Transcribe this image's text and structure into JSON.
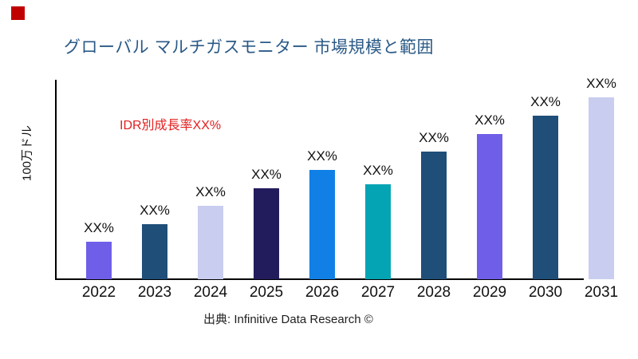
{
  "page": {
    "background": "#ffffff"
  },
  "logo": {
    "name": "red-square-logo",
    "color": "#c00000"
  },
  "header": {
    "title": "グローバル マルチガスモニター 市場規模と範囲",
    "title_color": "#2b5a87"
  },
  "growth_note": {
    "text": "IDR別成長率XX%",
    "color": "#e32020"
  },
  "source": {
    "text": "出典: Infinitive Data Research ©"
  },
  "chart_data": {
    "type": "bar",
    "title": "グローバル マルチガスモニター 市場規模と範囲",
    "xlabel": "",
    "ylabel": "100万ドル",
    "categories": [
      "2022",
      "2023",
      "2024",
      "2025",
      "2026",
      "2027",
      "2028",
      "2029",
      "2030",
      "2031"
    ],
    "values": [
      47,
      69,
      92,
      114,
      137,
      119,
      160,
      182,
      205,
      228
    ],
    "values_note": "relative magnitudes estimated from bar pixel heights; no numeric axis ticks shown",
    "bar_labels": [
      "XX%",
      "XX%",
      "XX%",
      "XX%",
      "XX%",
      "XX%",
      "XX%",
      "XX%",
      "XX%",
      "XX%"
    ],
    "bar_colors": [
      "#6F5FE8",
      "#1F4E79",
      "#C9CDEF",
      "#231C5C",
      "#1180E6",
      "#04A4B4",
      "#1F4E79",
      "#6F5FE8",
      "#1F4E79",
      "#C9CDEF"
    ],
    "ylim": [
      0,
      250
    ],
    "grid": false,
    "legend": false,
    "axis_color": "#000000",
    "tick_label_color": "#111111"
  }
}
